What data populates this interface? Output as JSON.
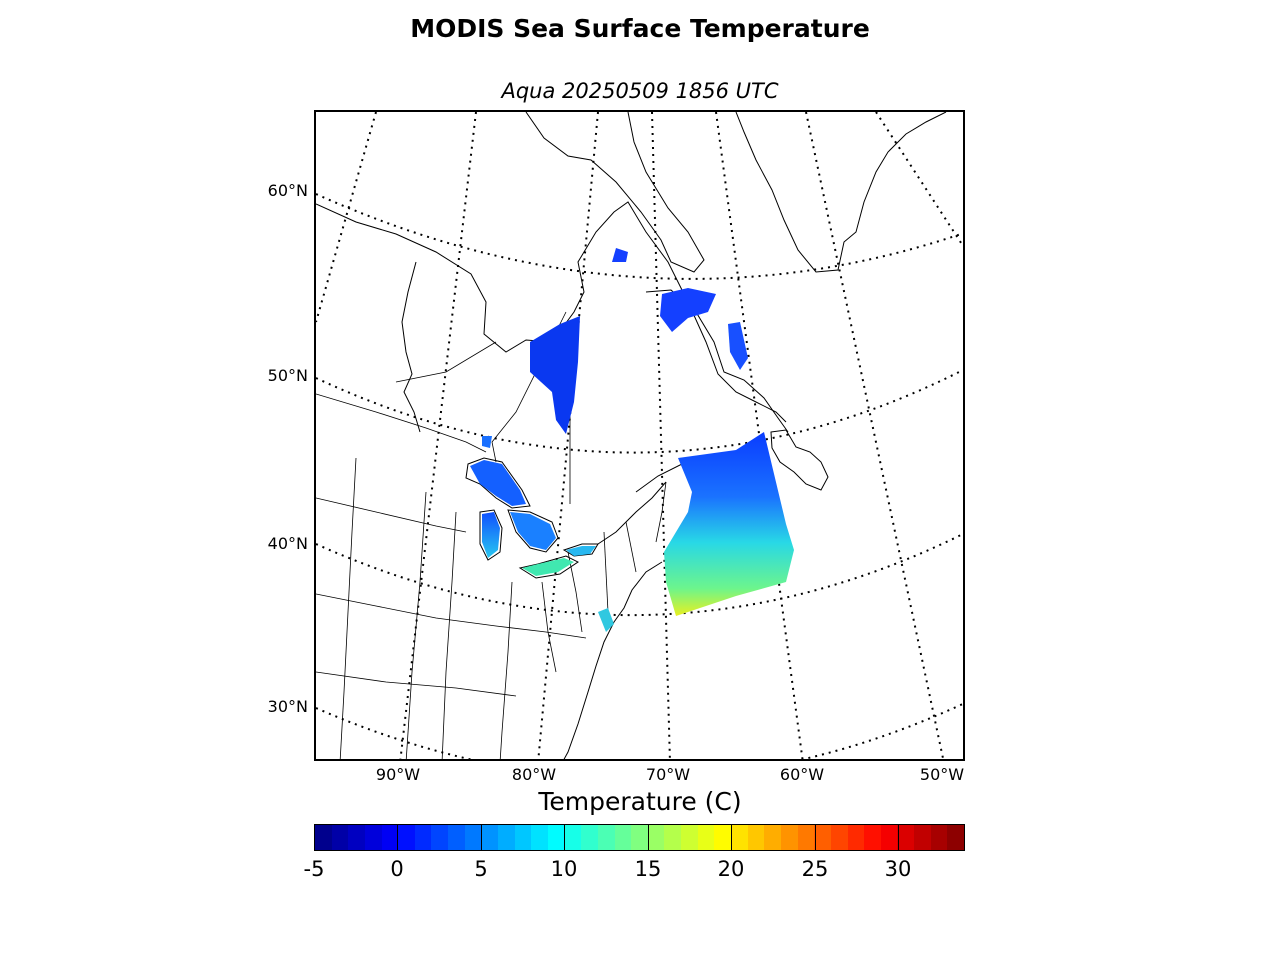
{
  "figure": {
    "title": "MODIS Sea Surface Temperature",
    "subtitle": "Aqua 20250509 1856 UTC"
  },
  "map": {
    "projection": "lambert-conformal",
    "parallels": [
      {
        "label": "60°N",
        "value": 60
      },
      {
        "label": "50°N",
        "value": 50
      },
      {
        "label": "40°N",
        "value": 40
      },
      {
        "label": "30°N",
        "value": 30
      }
    ],
    "meridians": [
      {
        "label": "90°W",
        "value": -90
      },
      {
        "label": "80°W",
        "value": -80
      },
      {
        "label": "70°W",
        "value": -70
      },
      {
        "label": "60°W",
        "value": -60
      },
      {
        "label": "50°W",
        "value": -50
      }
    ],
    "graticule_style": "dotted",
    "coastlines": true,
    "state_borders": true
  },
  "colorbar": {
    "title": "Temperature (C)",
    "min": -5,
    "max": 34,
    "colormap": "jet",
    "ticks": [
      {
        "label": "-5",
        "value": -5
      },
      {
        "label": "0",
        "value": 0
      },
      {
        "label": "5",
        "value": 5
      },
      {
        "label": "10",
        "value": 10
      },
      {
        "label": "15",
        "value": 15
      },
      {
        "label": "20",
        "value": 20
      },
      {
        "label": "25",
        "value": 25
      },
      {
        "label": "30",
        "value": 30
      }
    ]
  }
}
